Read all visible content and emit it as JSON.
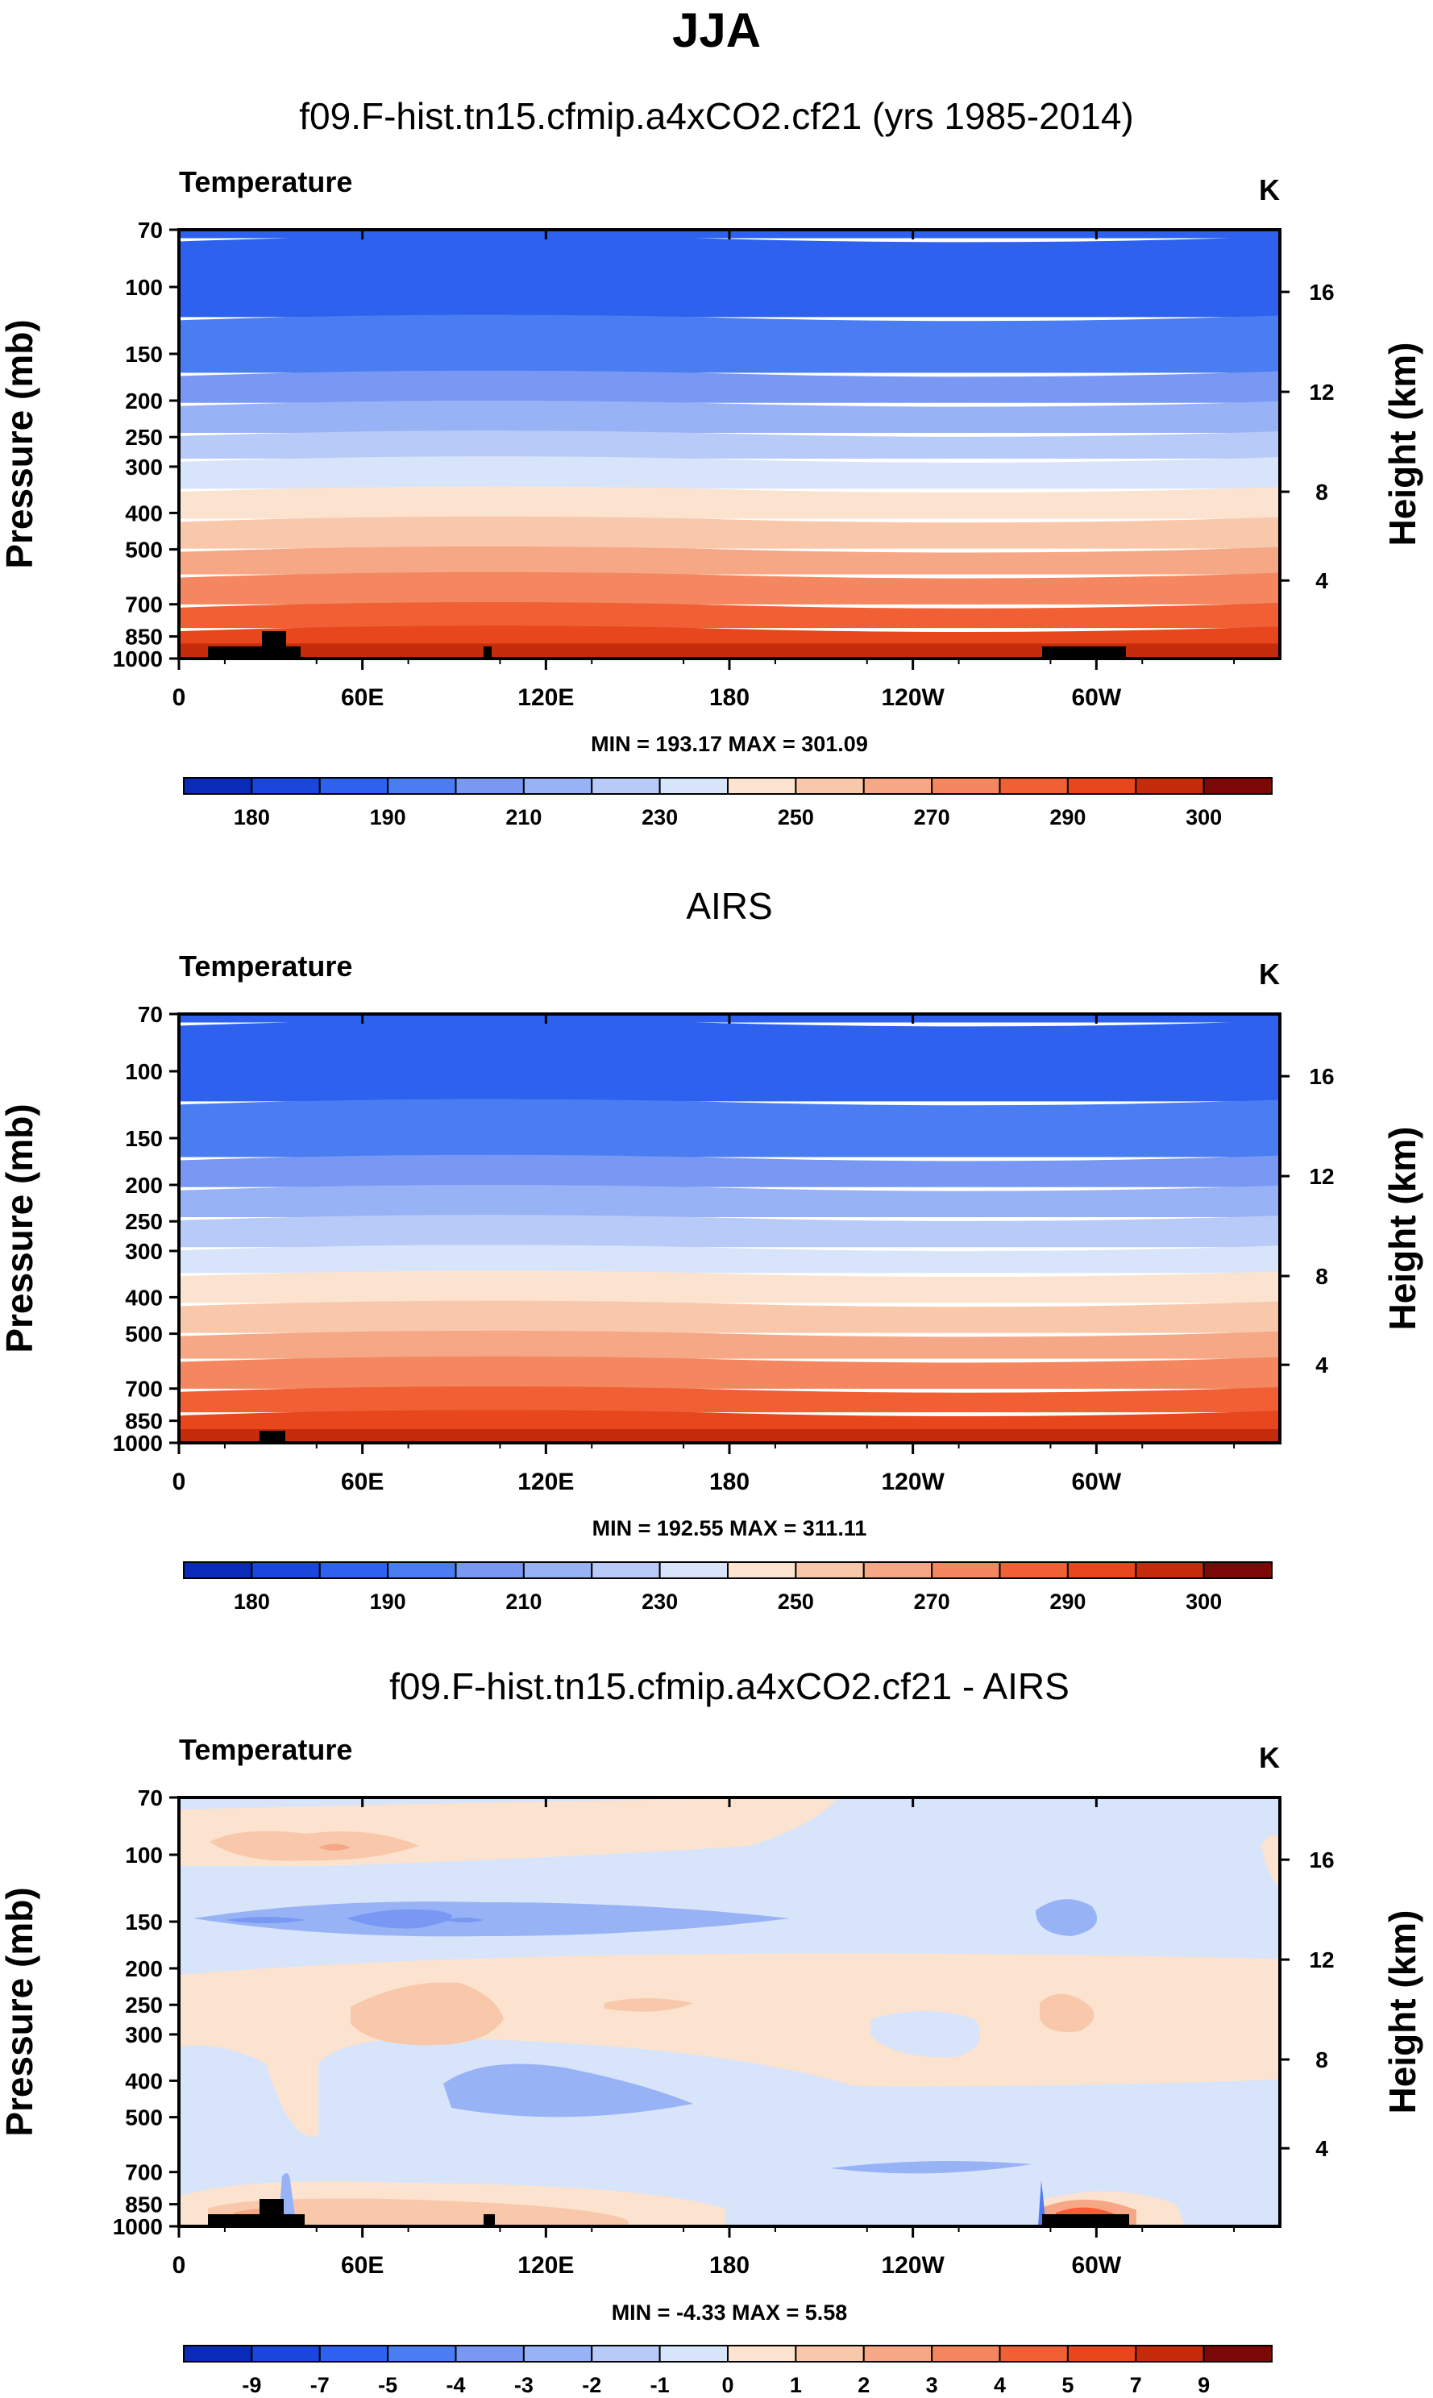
{
  "page_title": "JJA",
  "chart_data": [
    {
      "type": "contour",
      "title": "f09.F-hist.tn15.cfmip.a4xCO2.cf21 (yrs 1985-2014)",
      "variable": "Temperature",
      "units": "K",
      "ylabel": "Pressure (mb)",
      "ylabel_right": "Height (km)",
      "pressure_ticks": [
        "70",
        "100",
        "150",
        "200",
        "250",
        "300",
        "400",
        "500",
        "700",
        "850",
        "1000"
      ],
      "height_ticks": [
        "16",
        "12",
        "8",
        "4"
      ],
      "x_ticks": [
        "0",
        "60E",
        "120E",
        "180",
        "120W",
        "60W"
      ],
      "min_max": "MIN = 193.17  MAX = 301.09",
      "colorbar_labels": [
        "180",
        "190",
        "210",
        "230",
        "250",
        "270",
        "290",
        "300"
      ],
      "bands_from_top": [
        3,
        3,
        4,
        5,
        6,
        7,
        8,
        9,
        10,
        11,
        12,
        13,
        14,
        15
      ]
    },
    {
      "type": "contour",
      "title": "AIRS",
      "variable": "Temperature",
      "units": "K",
      "ylabel": "Pressure (mb)",
      "ylabel_right": "Height (km)",
      "pressure_ticks": [
        "70",
        "100",
        "150",
        "200",
        "250",
        "300",
        "400",
        "500",
        "700",
        "850",
        "1000"
      ],
      "height_ticks": [
        "16",
        "12",
        "8",
        "4"
      ],
      "x_ticks": [
        "0",
        "60E",
        "120E",
        "180",
        "120W",
        "60W"
      ],
      "min_max": "MIN = 192.55  MAX = 311.11",
      "colorbar_labels": [
        "180",
        "190",
        "210",
        "230",
        "250",
        "270",
        "290",
        "300"
      ],
      "bands_from_top": [
        3,
        3,
        4,
        5,
        6,
        7,
        8,
        9,
        10,
        11,
        12,
        13,
        14,
        15
      ]
    },
    {
      "type": "contour",
      "title": "f09.F-hist.tn15.cfmip.a4xCO2.cf21 - AIRS",
      "variable": "Temperature",
      "units": "K",
      "ylabel": "Pressure (mb)",
      "ylabel_right": "Height (km)",
      "pressure_ticks": [
        "70",
        "100",
        "150",
        "200",
        "250",
        "300",
        "400",
        "500",
        "700",
        "850",
        "1000"
      ],
      "height_ticks": [
        "16",
        "12",
        "8",
        "4"
      ],
      "x_ticks": [
        "0",
        "60E",
        "120E",
        "180",
        "120W",
        "60W"
      ],
      "min_max": "MIN = -4.33  MAX =  5.58",
      "colorbar_labels": [
        "-9",
        "-7",
        "-5",
        "-4",
        "-3",
        "-2",
        "-1",
        "0",
        "1",
        "2",
        "3",
        "4",
        "5",
        "7",
        "9"
      ]
    }
  ],
  "colors": {
    "palette": [
      "#0a0a7a",
      "#0a2ab8",
      "#1a46dc",
      "#2e62ee",
      "#4a7cf2",
      "#7898f4",
      "#98b2f6",
      "#b8caf8",
      "#d8e4fa",
      "#fbe3cf",
      "#f9c8aa",
      "#f6a886",
      "#f48660",
      "#f06034",
      "#e8461c",
      "#c42c0c",
      "#7c0808"
    ],
    "diff_bg": "#d8e4fa",
    "land": "#000000"
  }
}
